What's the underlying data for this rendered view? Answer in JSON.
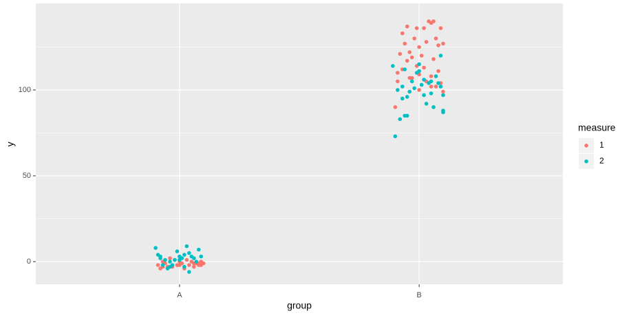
{
  "chart_data": {
    "type": "scatter",
    "x_label": "group",
    "y_label": "y",
    "xlim": [
      0.4,
      2.6
    ],
    "ylim": [
      -13.2,
      150.4
    ],
    "xticks": [
      {
        "value": 1,
        "label": "A"
      },
      {
        "value": 2,
        "label": "B"
      }
    ],
    "yticks": [
      0,
      50,
      100
    ],
    "y_minor_gridlines": [
      25,
      75,
      125
    ],
    "grid": true,
    "legend_title": "measure",
    "legend_position": "right",
    "series": [
      {
        "name": "1",
        "color": "#F8766D",
        "x": [
          0.91,
          0.92,
          0.93,
          0.94,
          0.96,
          0.97,
          0.98,
          0.99,
          1.0,
          1.01,
          1.02,
          1.03,
          1.04,
          1.05,
          1.06,
          1.07,
          1.08,
          1.09,
          1.1,
          0.95,
          1.0,
          0.93,
          1.06,
          1.08,
          1.09,
          1.9,
          1.91,
          1.91,
          1.92,
          1.93,
          1.93,
          1.94,
          1.95,
          1.95,
          1.96,
          1.97,
          1.97,
          1.98,
          1.99,
          1.99,
          2.0,
          2.0,
          2.01,
          2.02,
          2.02,
          2.03,
          2.03,
          2.04,
          2.05,
          2.05,
          2.06,
          2.06,
          2.07,
          2.07,
          2.08,
          2.08,
          2.09,
          2.09,
          2.1,
          2.1,
          2.05,
          2.0,
          1.96
        ],
        "values": [
          -2,
          -4,
          0,
          -1,
          2,
          -3,
          1,
          -2,
          0,
          -1,
          -4,
          1,
          -2,
          0,
          -3,
          -1,
          -2,
          0,
          -1,
          -3,
          -2,
          -3,
          -1,
          -1,
          -2,
          90,
          110,
          105,
          121,
          133,
          112,
          127,
          137,
          117,
          122,
          119,
          107,
          130,
          136,
          114,
          125,
          109,
          120,
          136,
          113,
          128,
          105,
          140,
          108,
          139,
          140,
          118,
          130,
          102,
          126,
          111,
          136,
          104,
          127,
          99,
          102,
          100,
          107
        ]
      },
      {
        "name": "2",
        "color": "#00BFC4",
        "x": [
          0.9,
          0.91,
          0.92,
          0.93,
          0.94,
          0.95,
          0.96,
          0.97,
          0.99,
          1.0,
          1.01,
          1.02,
          1.03,
          1.04,
          1.05,
          1.06,
          1.07,
          1.08,
          1.09,
          0.98,
          1.02,
          1.04,
          0.96,
          1.0,
          0.92,
          1.89,
          1.9,
          1.91,
          1.92,
          1.93,
          1.93,
          1.94,
          1.95,
          1.95,
          1.96,
          1.97,
          1.98,
          1.99,
          2.0,
          2.01,
          2.02,
          2.02,
          2.03,
          2.04,
          2.05,
          2.05,
          2.06,
          2.07,
          2.08,
          2.09,
          2.09,
          2.1,
          2.1,
          2.1,
          2.0,
          1.94
        ],
        "values": [
          8,
          4,
          2,
          -2,
          1,
          -4,
          0,
          -2,
          6,
          3,
          2,
          4,
          9,
          -6,
          3,
          2,
          0,
          7,
          3,
          1,
          -3,
          5,
          -3,
          1,
          3,
          114,
          73,
          100,
          83,
          95,
          102,
          112,
          85,
          96,
          99,
          105,
          101,
          110,
          115,
          103,
          97,
          106,
          92,
          104,
          98,
          105,
          90,
          108,
          104,
          102,
          120,
          97,
          87,
          88,
          111,
          85
        ]
      }
    ]
  }
}
